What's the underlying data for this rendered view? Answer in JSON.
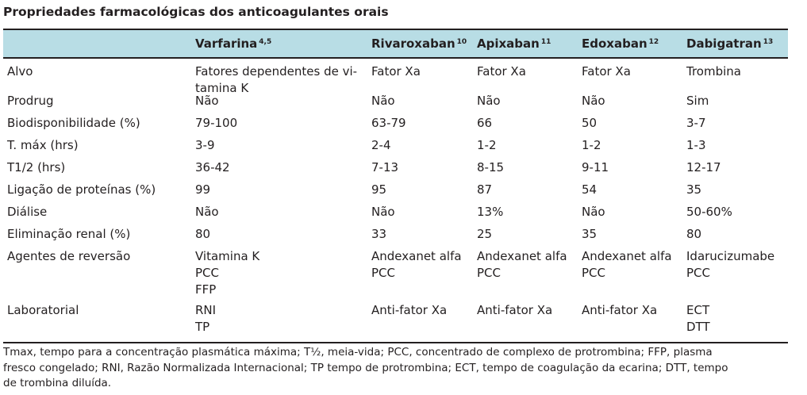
{
  "title": "Propriedades farmacológicas dos anticoagulantes orais",
  "header": [
    {
      "name": "",
      "ref": ""
    },
    {
      "name": "Varfarina",
      "ref": "4,5"
    },
    {
      "name": "Rivaroxaban",
      "ref": "10"
    },
    {
      "name": "Apixaban",
      "ref": "11"
    },
    {
      "name": "Edoxaban",
      "ref": "12"
    },
    {
      "name": "Dabigatran",
      "ref": "13"
    }
  ],
  "rows": [
    {
      "cells": [
        [
          "Alvo"
        ],
        [
          "Fatores dependentes de vi-",
          "tamina K"
        ],
        [
          "Fator Xa"
        ],
        [
          "Fator Xa"
        ],
        [
          "Fator Xa"
        ],
        [
          "Trombina"
        ]
      ]
    },
    {
      "cells": [
        [
          "Prodrug"
        ],
        [
          "Não"
        ],
        [
          "Não"
        ],
        [
          "Não"
        ],
        [
          "Não"
        ],
        [
          "Sim"
        ]
      ]
    },
    {
      "cells": [
        [
          "Biodisponibilidade (%)"
        ],
        [
          "79-100"
        ],
        [
          "63-79"
        ],
        [
          "66"
        ],
        [
          "50"
        ],
        [
          "3-7"
        ]
      ]
    },
    {
      "cells": [
        [
          "T. máx (hrs)"
        ],
        [
          "3-9"
        ],
        [
          "2-4"
        ],
        [
          "1-2"
        ],
        [
          "1-2"
        ],
        [
          "1-3"
        ]
      ]
    },
    {
      "cells": [
        [
          "T1/2 (hrs)"
        ],
        [
          "36-42"
        ],
        [
          "7-13"
        ],
        [
          "8-15"
        ],
        [
          "9-11"
        ],
        [
          "12-17"
        ]
      ]
    },
    {
      "cells": [
        [
          "Ligação de proteínas (%)"
        ],
        [
          "99"
        ],
        [
          "95"
        ],
        [
          "87"
        ],
        [
          "54"
        ],
        [
          "35"
        ]
      ]
    },
    {
      "cells": [
        [
          "Diálise"
        ],
        [
          "Não"
        ],
        [
          "Não"
        ],
        [
          "13%"
        ],
        [
          "Não"
        ],
        [
          "50-60%"
        ]
      ]
    },
    {
      "cells": [
        [
          "Eliminação renal (%)"
        ],
        [
          "80"
        ],
        [
          "33"
        ],
        [
          "25"
        ],
        [
          "35"
        ],
        [
          "80"
        ]
      ]
    },
    {
      "cells": [
        [
          "Agentes de reversão"
        ],
        [
          "Vitamina K",
          "PCC",
          "FFP"
        ],
        [
          "Andexanet alfa",
          "PCC"
        ],
        [
          "Andexanet alfa",
          "PCC"
        ],
        [
          "Andexanet alfa",
          "PCC"
        ],
        [
          "Idarucizumabe",
          "PCC"
        ]
      ]
    },
    {
      "cells": [
        [
          "Laboratorial"
        ],
        [
          "RNI",
          "TP"
        ],
        [
          "Anti-fator Xa"
        ],
        [
          "Anti-fator Xa"
        ],
        [
          "Anti-fator Xa"
        ],
        [
          "ECT",
          "DTT"
        ]
      ]
    }
  ],
  "footnote": [
    "Tmax, tempo para a concentração plasmática máxima; T½, meia-vida; PCC, concentrado de complexo de protrombina; FFP, plasma",
    "fresco congelado; RNI, Razão Normalizada Internacional; TP tempo de protrombina; ECT, tempo de coagulação da ecarina; DTT, tempo",
    "de trombina diluída."
  ],
  "colors": {
    "header_bg": "#b8dde5",
    "text": "#231f20"
  }
}
